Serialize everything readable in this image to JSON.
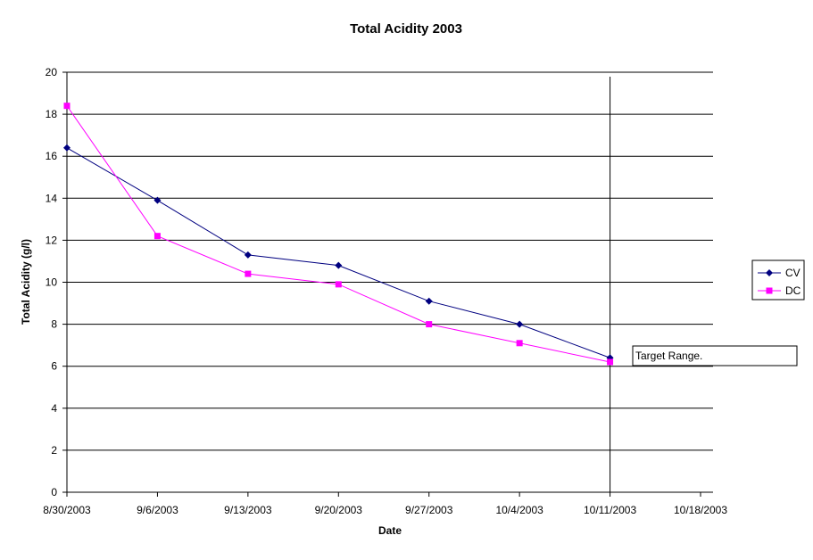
{
  "chart_data": {
    "type": "line",
    "title": "Total Acidity 2003",
    "xlabel": "Date",
    "ylabel": "Total Acidity (g/l)",
    "x_ticks": [
      "8/30/2003",
      "9/6/2003",
      "9/13/2003",
      "9/20/2003",
      "9/27/2003",
      "10/4/2003",
      "10/11/2003",
      "10/18/2003"
    ],
    "y_ticks": [
      "0",
      "2",
      "4",
      "6",
      "8",
      "10",
      "12",
      "14",
      "16",
      "18",
      "20"
    ],
    "xlim": [
      "2003-08-30",
      "2003-10-18"
    ],
    "ylim": [
      0,
      20
    ],
    "grid": "horizontal",
    "legend": "right",
    "series": [
      {
        "name": "CV",
        "color": "#000080",
        "marker": "diamond",
        "points": [
          {
            "x": "2003-08-30",
            "y": 16.4
          },
          {
            "x": "2003-09-06",
            "y": 13.9
          },
          {
            "x": "2003-09-13",
            "y": 11.3
          },
          {
            "x": "2003-09-20",
            "y": 10.8
          },
          {
            "x": "2003-09-27",
            "y": 9.1
          },
          {
            "x": "2003-10-04",
            "y": 8.0
          },
          {
            "x": "2003-10-11",
            "y": 6.4
          }
        ]
      },
      {
        "name": "DC",
        "color": "#ff00ff",
        "marker": "square",
        "points": [
          {
            "x": "2003-08-30",
            "y": 18.4
          },
          {
            "x": "2003-09-06",
            "y": 12.2
          },
          {
            "x": "2003-09-13",
            "y": 10.4
          },
          {
            "x": "2003-09-20",
            "y": 9.9
          },
          {
            "x": "2003-09-27",
            "y": 8.0
          },
          {
            "x": "2003-10-04",
            "y": 7.1
          },
          {
            "x": "2003-10-11",
            "y": 6.2
          }
        ]
      }
    ],
    "reference_line": {
      "x": "2003-10-11",
      "label": "Target Range."
    }
  }
}
